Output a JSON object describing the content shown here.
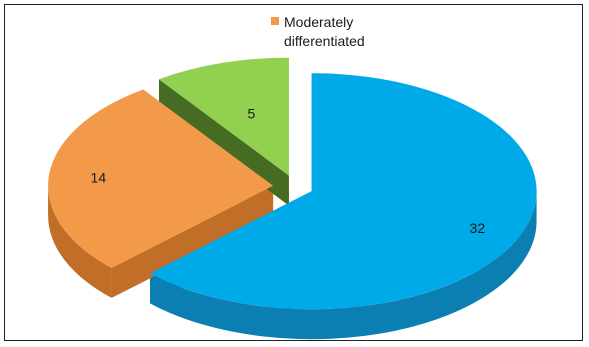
{
  "chart_data": {
    "type": "pie",
    "style": "3d-exploded",
    "title": "",
    "slices": [
      {
        "name": "",
        "value": 32,
        "label": "32",
        "color": "#00a9e8",
        "side_color": "#0b7fb2"
      },
      {
        "name": "Moderately differentiated",
        "value": 14,
        "label": "14",
        "color": "#f39a4a",
        "side_color": "#c06e28"
      },
      {
        "name": "",
        "value": 5,
        "label": "5",
        "color": "#92d050",
        "side_color": "#466b22"
      }
    ],
    "legend": {
      "placement": "top-center",
      "entries": [
        {
          "lines": [
            "Moderately",
            "differentiated"
          ],
          "color": "#f39a4a"
        }
      ]
    }
  }
}
